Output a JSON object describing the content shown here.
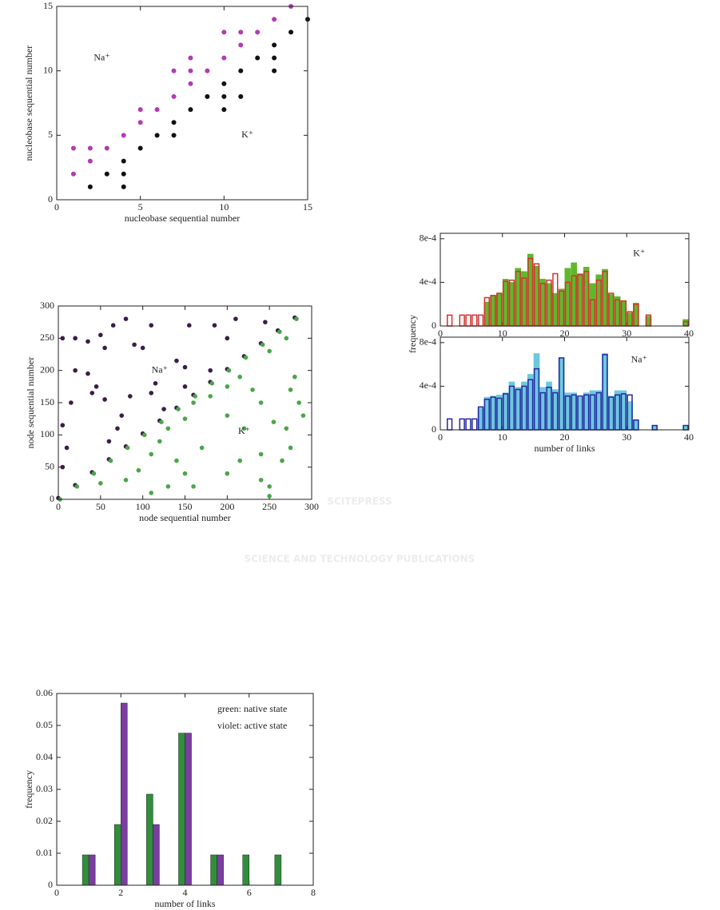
{
  "watermark": {
    "title": "SCITEPRESS",
    "subtitle": "SCIENCE AND TECHNOLOGY PUBLICATIONS"
  },
  "chart_data": [
    {
      "type": "scatter",
      "xlabel": "nucleobase sequential number",
      "ylabel": "nucleobase sequential number",
      "xlim": [
        0,
        15
      ],
      "ylim": [
        0,
        15
      ],
      "xticks": [
        0,
        5,
        10,
        15
      ],
      "yticks": [
        0,
        5,
        10,
        15
      ],
      "annotations": [
        "Na⁺",
        "K⁺"
      ],
      "series": [
        {
          "color": "#b23ab4",
          "x": [
            1,
            1,
            2,
            2,
            3,
            4,
            5,
            5,
            6,
            7,
            7,
            8,
            8,
            8,
            9,
            10,
            10,
            11,
            11,
            12,
            13,
            14
          ],
          "y": [
            4,
            2,
            4,
            3,
            4,
            5,
            7,
            6,
            7,
            10,
            8,
            11,
            10,
            9,
            10,
            13,
            11,
            13,
            12,
            13,
            14,
            15
          ]
        },
        {
          "color": "#111111",
          "x": [
            2,
            3,
            4,
            4,
            4,
            5,
            6,
            7,
            7,
            8,
            9,
            10,
            10,
            10,
            11,
            11,
            12,
            13,
            13,
            13,
            14,
            15
          ],
          "y": [
            1,
            2,
            3,
            2,
            1,
            4,
            5,
            6,
            5,
            7,
            8,
            9,
            8,
            7,
            10,
            8,
            11,
            12,
            11,
            10,
            13,
            14
          ]
        }
      ]
    },
    {
      "type": "histogram",
      "ylabel": "frequency",
      "annotations": [
        "K⁺"
      ],
      "xlim": [
        0,
        40
      ],
      "ylim": [
        0,
        0.00085
      ],
      "xticks": [
        0,
        10,
        20,
        30,
        40
      ],
      "yticks": [
        0,
        {
          "value": 0.0004,
          "label": "4e-4"
        },
        {
          "value": 0.0008,
          "label": "8e-4"
        }
      ],
      "bins": [
        0,
        1,
        2,
        3,
        4,
        5,
        6,
        7,
        8,
        9,
        10,
        11,
        12,
        13,
        14,
        15,
        16,
        17,
        18,
        19,
        20,
        21,
        22,
        23,
        24,
        25,
        26,
        27,
        28,
        29,
        30,
        31,
        32,
        33,
        34,
        35,
        36,
        37,
        38,
        39,
        40
      ],
      "series": [
        {
          "color": "#5fb82a",
          "filled": true,
          "values": [
            0,
            0,
            0,
            0,
            0,
            0,
            0,
            0.00022,
            0.00028,
            0.0003,
            0.00043,
            0.0004,
            0.00053,
            0.0005,
            0.00066,
            0.00055,
            0.00043,
            0.00039,
            0.0003,
            0.00034,
            0.00053,
            0.00058,
            0.00048,
            0.00054,
            0.00039,
            0.00047,
            0.00052,
            0.00029,
            0.00027,
            0.00023,
            0.00012,
            0.00021,
            0,
            9e-05,
            0,
            0,
            0,
            0,
            0,
            6e-05
          ]
        },
        {
          "color": "#d83030",
          "filled": false,
          "values": [
            0,
            0.0001,
            0,
            0.0001,
            0.0001,
            0.0001,
            0.0001,
            0.00026,
            0.00028,
            0.0003,
            0.00041,
            0.00042,
            0.0005,
            0.00044,
            0.00062,
            0.00057,
            0.00039,
            0.00042,
            0.00048,
            0.00032,
            0.0004,
            0.00046,
            0.00047,
            0.0005,
            0.00024,
            0.00042,
            0.0005,
            0.0003,
            0.00024,
            0.00023,
            0.00013,
            0.0002,
            0,
            0.0001,
            0,
            0,
            0,
            0,
            0,
            4e-05
          ]
        }
      ]
    },
    {
      "type": "histogram",
      "xlabel": "number of links",
      "annotations": [
        "Na⁺"
      ],
      "xlim": [
        0,
        40
      ],
      "ylim": [
        0,
        0.00085
      ],
      "xticks": [
        0,
        10,
        20,
        30,
        40
      ],
      "yticks": [
        0,
        {
          "value": 0.0004,
          "label": "4e-4"
        },
        {
          "value": 0.0008,
          "label": "8e-4"
        }
      ],
      "bins": [
        0,
        1,
        2,
        3,
        4,
        5,
        6,
        7,
        8,
        9,
        10,
        11,
        12,
        13,
        14,
        15,
        16,
        17,
        18,
        19,
        20,
        21,
        22,
        23,
        24,
        25,
        26,
        27,
        28,
        29,
        30,
        31,
        32,
        33,
        34,
        35,
        36,
        37,
        38,
        39,
        40
      ],
      "series": [
        {
          "color": "#6cc8de",
          "filled": true,
          "values": [
            0,
            0,
            0,
            0,
            0,
            0,
            0.0002,
            0.0003,
            0.00031,
            0.00032,
            0.00034,
            0.00044,
            0.00039,
            0.00044,
            0.00051,
            0.0007,
            0.00039,
            0.00044,
            0.00037,
            0.00066,
            0.00034,
            0.00034,
            0.0003,
            0.00034,
            0.00036,
            0.00036,
            0.0007,
            0.00031,
            0.00036,
            0.00036,
            0.00026,
            9e-05,
            0,
            0,
            4e-05,
            0,
            0,
            0,
            0,
            4e-05
          ]
        },
        {
          "color": "#2328a0",
          "filled": false,
          "values": [
            0,
            0.0001,
            0,
            0.0001,
            0.0001,
            0.0001,
            0.00021,
            0.00028,
            0.0003,
            0.00029,
            0.00033,
            0.0004,
            0.00037,
            0.0004,
            0.00046,
            0.00056,
            0.00034,
            0.00039,
            0.00034,
            0.00066,
            0.00031,
            0.00032,
            0.00031,
            0.00032,
            0.00032,
            0.00034,
            0.00069,
            0.0003,
            0.00032,
            0.00033,
            0.00032,
            9e-05,
            0,
            0,
            4e-05,
            0,
            0,
            0,
            0,
            4e-05
          ]
        }
      ]
    },
    {
      "type": "scatter",
      "xlabel": "node sequential number",
      "ylabel": "node sequential number",
      "xlim": [
        0,
        300
      ],
      "ylim": [
        0,
        300
      ],
      "xticks": [
        0,
        50,
        100,
        150,
        200,
        250,
        300
      ],
      "yticks": [
        0,
        50,
        100,
        150,
        200,
        250,
        300
      ],
      "annotations": [
        "Na⁺",
        "K⁺"
      ],
      "series": [
        {
          "color": "#3b1d48",
          "x": [
            0,
            20,
            40,
            60,
            80,
            100,
            120,
            140,
            160,
            180,
            200,
            220,
            240,
            260,
            280,
            5,
            20,
            35,
            50,
            5,
            20,
            35,
            40,
            45,
            55,
            55,
            65,
            75,
            80,
            85,
            90,
            100,
            110,
            115,
            125,
            140,
            150,
            155,
            185,
            200,
            210,
            245,
            5,
            10,
            15,
            60,
            70,
            110,
            150,
            180
          ],
          "y": [
            2,
            22,
            42,
            62,
            82,
            102,
            122,
            142,
            162,
            182,
            202,
            222,
            242,
            262,
            282,
            250,
            250,
            245,
            255,
            115,
            200,
            195,
            165,
            175,
            155,
            235,
            270,
            130,
            280,
            160,
            240,
            235,
            270,
            180,
            140,
            215,
            205,
            270,
            270,
            250,
            280,
            275,
            50,
            80,
            150,
            90,
            110,
            165,
            175,
            200
          ]
        },
        {
          "color": "#4aa648",
          "x": [
            2,
            22,
            42,
            62,
            82,
            102,
            122,
            142,
            162,
            182,
            202,
            222,
            242,
            262,
            282,
            250,
            250,
            265,
            275,
            290,
            285,
            270,
            240,
            230,
            215,
            200,
            180,
            160,
            150,
            130,
            120,
            110,
            140,
            150,
            160,
            170,
            200,
            215,
            240,
            255,
            275,
            280,
            250,
            270,
            110,
            130,
            50,
            80,
            95,
            200,
            220,
            240
          ],
          "y": [
            0,
            20,
            40,
            60,
            80,
            100,
            120,
            140,
            160,
            180,
            200,
            220,
            240,
            260,
            280,
            5,
            20,
            60,
            80,
            130,
            150,
            110,
            150,
            170,
            190,
            175,
            160,
            150,
            125,
            110,
            90,
            70,
            60,
            40,
            20,
            80,
            40,
            60,
            70,
            120,
            170,
            190,
            230,
            250,
            10,
            20,
            25,
            30,
            45,
            130,
            110,
            30
          ]
        }
      ]
    },
    {
      "type": "bar",
      "xlabel": "number of links",
      "ylabel": "frequency",
      "xlim": [
        0,
        8
      ],
      "ylim": [
        0,
        0.06
      ],
      "xticks": [
        0,
        2,
        4,
        6,
        8
      ],
      "yticks": [
        0,
        0.01,
        0.02,
        0.03,
        0.04,
        0.05,
        0.06
      ],
      "x": [
        1,
        2,
        3,
        4,
        5,
        6,
        7
      ],
      "series": [
        {
          "name": "green: native state",
          "color": "#2f8f3a",
          "values": [
            0.0095,
            0.019,
            0.0285,
            0.0476,
            0.0095,
            0.0095,
            0.0095
          ]
        },
        {
          "name": "violet: active state",
          "color": "#7a3da0",
          "values": [
            0.0095,
            0.057,
            0.019,
            0.0476,
            0.0095,
            0,
            0
          ]
        }
      ]
    }
  ]
}
